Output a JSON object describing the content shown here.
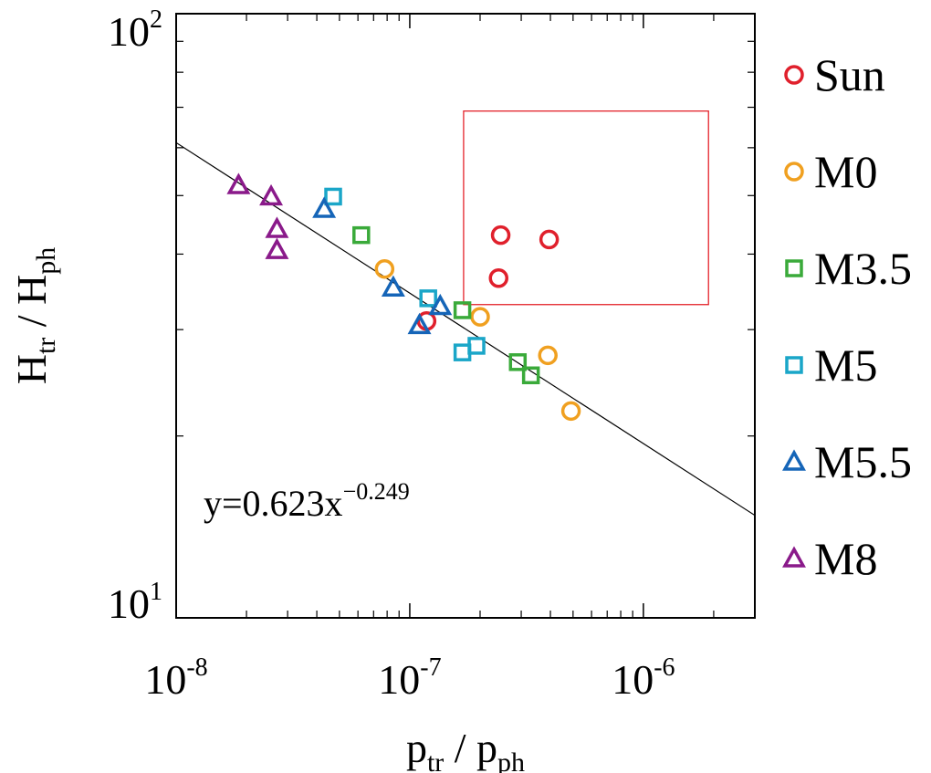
{
  "chart_data": {
    "type": "scatter",
    "xscale": "log",
    "yscale": "log",
    "xlim": [
      1e-08,
      3e-06
    ],
    "ylim": [
      10,
      100
    ],
    "x_ticks": [
      {
        "value": 1e-08,
        "base": "10",
        "exp": "-8"
      },
      {
        "value": 1e-07,
        "base": "10",
        "exp": "-7"
      },
      {
        "value": 1e-06,
        "base": "10",
        "exp": "-6"
      }
    ],
    "y_ticks": [
      {
        "value": 10,
        "base": "10",
        "exp": "1"
      },
      {
        "value": 100,
        "base": "10",
        "exp": "2"
      }
    ],
    "xlabel": {
      "main": "p",
      "sub1": "tr",
      "sep": " / p",
      "sub2": "ph"
    },
    "ylabel": {
      "main": "H",
      "sub1": "tr",
      "sep": " / H",
      "sub2": "ph"
    },
    "fit": {
      "a": 0.623,
      "b": -0.249,
      "label_main": "y=0.623x",
      "label_exp": "−0.249"
    },
    "box": {
      "x": [
        1.7e-07,
        1.9e-06
      ],
      "y": [
        33,
        69
      ],
      "color": "#e4232b"
    },
    "series": [
      {
        "name": "Sun",
        "marker": "circle",
        "color": "#e0202c",
        "points": [
          [
            2.45e-07,
            43
          ],
          [
            3.95e-07,
            42.3
          ],
          [
            2.4e-07,
            36.5
          ],
          [
            1.18e-07,
            31
          ]
        ]
      },
      {
        "name": "M0",
        "marker": "circle",
        "color": "#f0a020",
        "points": [
          [
            7.8e-08,
            37.8
          ],
          [
            2e-07,
            31.5
          ],
          [
            3.9e-07,
            27.2
          ],
          [
            4.9e-07,
            22
          ]
        ]
      },
      {
        "name": "M3.5",
        "marker": "square",
        "color": "#3aaa3a",
        "points": [
          [
            6.2e-08,
            43
          ],
          [
            1.68e-07,
            32.3
          ],
          [
            2.9e-07,
            26.5
          ],
          [
            3.3e-07,
            25.2
          ]
        ]
      },
      {
        "name": "M5",
        "marker": "square",
        "color": "#1aa6c8",
        "points": [
          [
            4.7e-08,
            49.8
          ],
          [
            1.2e-07,
            33.8
          ],
          [
            1.68e-07,
            27.5
          ],
          [
            1.93e-07,
            28.2
          ]
        ]
      },
      {
        "name": "M5.5",
        "marker": "triangle",
        "color": "#1565b8",
        "points": [
          [
            4.3e-08,
            47.5
          ],
          [
            8.5e-08,
            35.2
          ],
          [
            1.1e-07,
            30.5
          ],
          [
            1.35e-07,
            32.8
          ]
        ]
      },
      {
        "name": "M8",
        "marker": "triangle",
        "color": "#8a1a8a",
        "points": [
          [
            1.85e-08,
            52
          ],
          [
            2.55e-08,
            49.8
          ],
          [
            2.7e-08,
            44
          ],
          [
            2.7e-08,
            40.6
          ]
        ]
      }
    ]
  }
}
